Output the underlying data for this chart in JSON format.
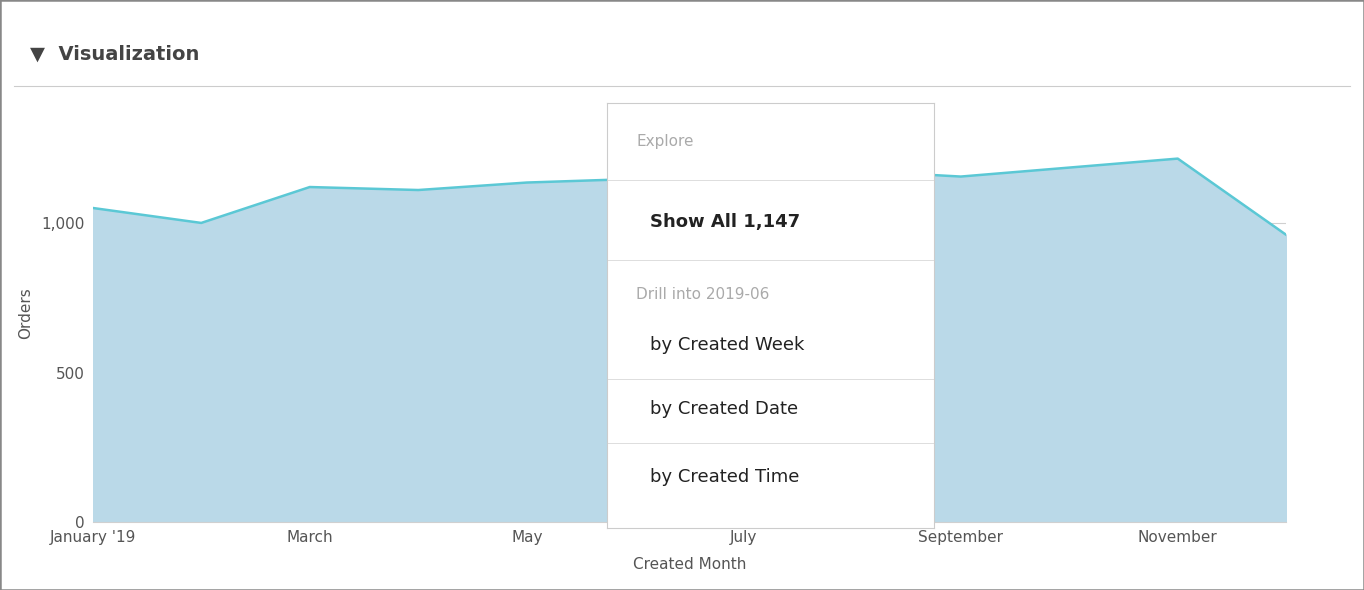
{
  "months": [
    1,
    2,
    3,
    4,
    5,
    6,
    7,
    8,
    9,
    10,
    11,
    12
  ],
  "values": [
    1050,
    1000,
    1120,
    1110,
    1135,
    1147,
    1215,
    1175,
    1155,
    1185,
    1215,
    960
  ],
  "x_tick_positions": [
    1,
    3,
    5,
    7,
    9,
    11
  ],
  "x_tick_labels": [
    "January '19",
    "March",
    "May",
    "July",
    "September",
    "November"
  ],
  "y_ticks": [
    0,
    500,
    1000
  ],
  "ylabel": "Orders",
  "xlabel": "Created Month",
  "ylim": [
    0,
    1400
  ],
  "xlim": [
    1,
    12
  ],
  "line_color": "#5bc8d5",
  "fill_color": "#bad9e8",
  "grid_color": "#d0d0d0",
  "bg_color": "#ffffff",
  "panel_title": "Visualization",
  "panel_title_color": "#444444",
  "panel_title_fontsize": 14,
  "axis_label_fontsize": 11,
  "tick_label_fontsize": 11,
  "tick_label_color": "#555555",
  "popup_explore_label": "Explore",
  "popup_explore_color": "#aaaaaa",
  "popup_explore_fontsize": 11,
  "popup_show_all": "Show All 1,147",
  "popup_show_all_color": "#222222",
  "popup_show_all_fontsize": 13,
  "popup_drill_label": "Drill into 2019-06",
  "popup_drill_color": "#aaaaaa",
  "popup_drill_fontsize": 11,
  "popup_items": [
    "by Created Week",
    "by Created Date",
    "by Created Time"
  ],
  "popup_items_color": "#222222",
  "popup_items_fontsize": 13,
  "highlight_month": 6,
  "highlight_value": 1147
}
